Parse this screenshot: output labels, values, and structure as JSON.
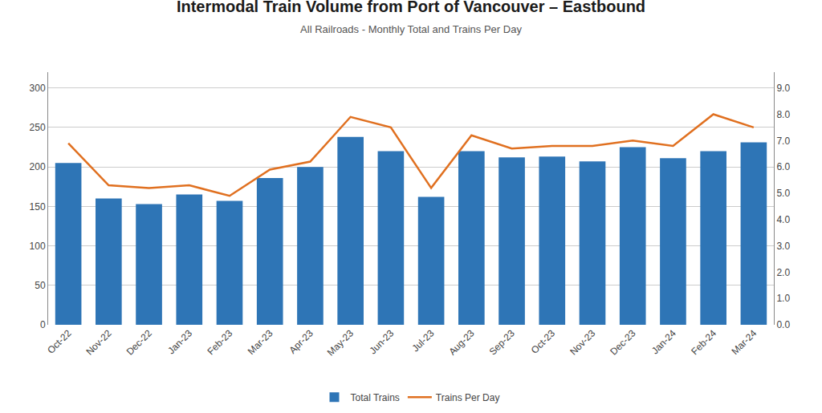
{
  "chart_data": {
    "type": "bar",
    "title": "Intermodal Train Volume from Port of Vancouver – Eastbound",
    "subtitle": "All Railroads - Monthly Total and Trains Per Day",
    "categories": [
      "Oct-22",
      "Nov-22",
      "Dec-22",
      "Jan-23",
      "Feb-23",
      "Mar-23",
      "Apr-23",
      "May-23",
      "Jun-23",
      "Jul-23",
      "Aug-23",
      "Sep-23",
      "Oct-23",
      "Nov-23",
      "Dec-23",
      "Jan-24",
      "Feb-24",
      "Mar-24"
    ],
    "series": [
      {
        "name": "Total Trains",
        "type": "bar",
        "color": "#2E75B6",
        "values": [
          205,
          160,
          153,
          165,
          157,
          186,
          200,
          238,
          220,
          162,
          220,
          212,
          213,
          207,
          225,
          211,
          220,
          231
        ]
      },
      {
        "name": "Trains Per Day",
        "type": "line",
        "color": "#E07020",
        "axis": "y2",
        "values": [
          6.9,
          5.3,
          5.2,
          5.3,
          4.9,
          5.9,
          6.2,
          7.9,
          7.5,
          5.2,
          7.2,
          6.7,
          6.8,
          6.8,
          7.0,
          6.8,
          8.0,
          7.5
        ]
      }
    ],
    "ylim": [
      0,
      320
    ],
    "yticks": [
      0,
      50,
      100,
      150,
      200,
      250,
      300
    ],
    "y2lim": [
      0,
      9.6
    ],
    "y2ticks": [
      {
        "value": 0,
        "label": "0.0"
      },
      {
        "value": 1,
        "label": "1.0"
      },
      {
        "value": 2,
        "label": "2.0"
      },
      {
        "value": 3,
        "label": "3.0"
      },
      {
        "value": 4,
        "label": "4.0"
      },
      {
        "value": 5,
        "label": "5.0"
      },
      {
        "value": 6,
        "label": "6.0"
      },
      {
        "value": 7,
        "label": "7.0"
      },
      {
        "value": 8,
        "label": "8.0"
      },
      {
        "value": 9,
        "label": "9.0"
      }
    ],
    "grid": true,
    "legend": "bottom"
  }
}
